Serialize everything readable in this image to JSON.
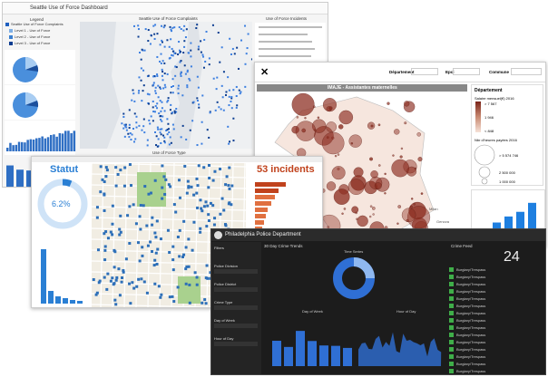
{
  "seattle": {
    "title": "Seattle Use of Force Dashboard",
    "legend_title": "Legend",
    "legend_items": [
      "Seattle Use of Force Complaints",
      "Level 1 - Use of Force",
      "Level 2 - Use of Force",
      "Level 3 - Use of Force"
    ],
    "force_level": "By Force Level",
    "day_of_week": "By Day of Week",
    "hour": "By Hour",
    "map_title": "Seattle Use of Force Complaints",
    "type_title": "Use of Force Type",
    "list_title": "Use of Force Incidents"
  },
  "france": {
    "departement": "Département",
    "epci": "Epci",
    "commune": "Commune",
    "title": "IMAJE - Assistantes maternelles",
    "legend_title": "Département",
    "salary_title": "Salaire mensuel(€) 2016",
    "salary_ticks": [
      "> 7 567",
      "1 946",
      "< 848"
    ],
    "hours_title": "Nbr d'heures payées 2016",
    "hours_ticks": [
      "> 5 574 746",
      "2 500 000",
      "1 000 000"
    ],
    "cities": [
      "Milan",
      "Genova"
    ]
  },
  "survey": {
    "title": "Statut",
    "percent": "6.2%",
    "incidents": "53 incidents"
  },
  "philly": {
    "title": "Philadelphia Police Department",
    "trends": "30 Day Crime Trends",
    "time_series": "Time Series",
    "day_of_week": "Day of Week",
    "hour_of_day": "Hour of Day",
    "feed_title": "Crime Feed",
    "feed_count": "24",
    "filters": [
      "Filters",
      "Police Division",
      "Police District",
      "Crime Type",
      "Day of Week",
      "Hour of Day"
    ],
    "feed_item": "Burglary/Trespass"
  }
}
